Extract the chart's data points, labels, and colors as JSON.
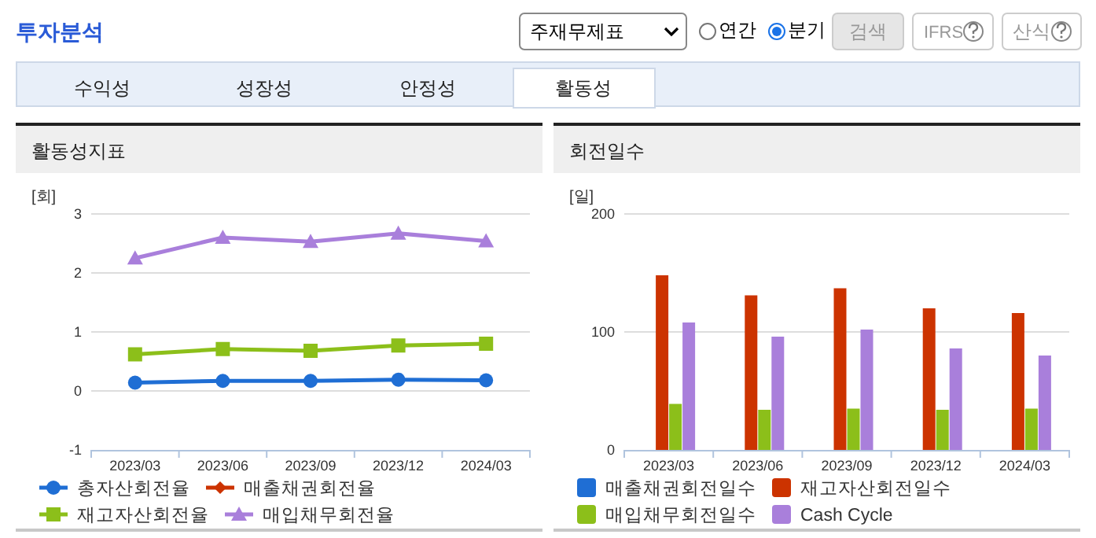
{
  "chart_data": [
    {
      "type": "line",
      "title": "활동성지표",
      "ylabel": "[회]",
      "categories": [
        "2023/03",
        "2023/06",
        "2023/09",
        "2023/12",
        "2024/03"
      ],
      "ylim": [
        -1,
        3
      ],
      "yticks": [
        -1,
        0,
        1,
        2,
        3
      ],
      "grid": "y",
      "legend": "bottom",
      "line_style": "solid",
      "series": [
        {
          "name": "총자산회전율",
          "color": "#1f6ed4",
          "marker": "circle",
          "values": [
            0.14,
            0.17,
            0.17,
            0.19,
            0.18
          ]
        },
        {
          "name": "매출채권회전율",
          "color": "#cc3300",
          "marker": "diamond",
          "values": [
            null,
            null,
            null,
            null,
            null
          ]
        },
        {
          "name": "재고자산회전율",
          "color": "#8cbf1a",
          "marker": "square",
          "values": [
            0.62,
            0.71,
            0.68,
            0.77,
            0.8
          ]
        },
        {
          "name": "매입채무회전율",
          "color": "#a97fdb",
          "marker": "triangle",
          "values": [
            2.25,
            2.6,
            2.53,
            2.67,
            2.54
          ]
        }
      ],
      "annotations": [
        "투자분석",
        "주재무제표",
        "연간",
        "분기",
        "검색",
        "IFRS",
        "산식",
        "수익성",
        "성장성",
        "안정성",
        "활동성"
      ]
    },
    {
      "type": "bar",
      "title": "회전일수",
      "ylabel": "[일]",
      "categories": [
        "2023/03",
        "2023/06",
        "2023/09",
        "2023/12",
        "2024/03"
      ],
      "ylim": [
        0,
        200
      ],
      "yticks": [
        0,
        100,
        200
      ],
      "grid": "y",
      "legend": "bottom",
      "series": [
        {
          "name": "매출채권회전일수",
          "color": "#1f6ed4",
          "values": [
            null,
            null,
            null,
            null,
            null
          ]
        },
        {
          "name": "재고자산회전일수",
          "color": "#cc3300",
          "values": [
            148,
            131,
            137,
            120,
            116
          ]
        },
        {
          "name": "매입채무회전일수",
          "color": "#8cbf1a",
          "values": [
            39,
            34,
            35,
            34,
            35
          ]
        },
        {
          "name": "Cash Cycle",
          "color": "#a97fdb",
          "values": [
            108,
            96,
            102,
            86,
            80
          ]
        }
      ]
    }
  ]
}
